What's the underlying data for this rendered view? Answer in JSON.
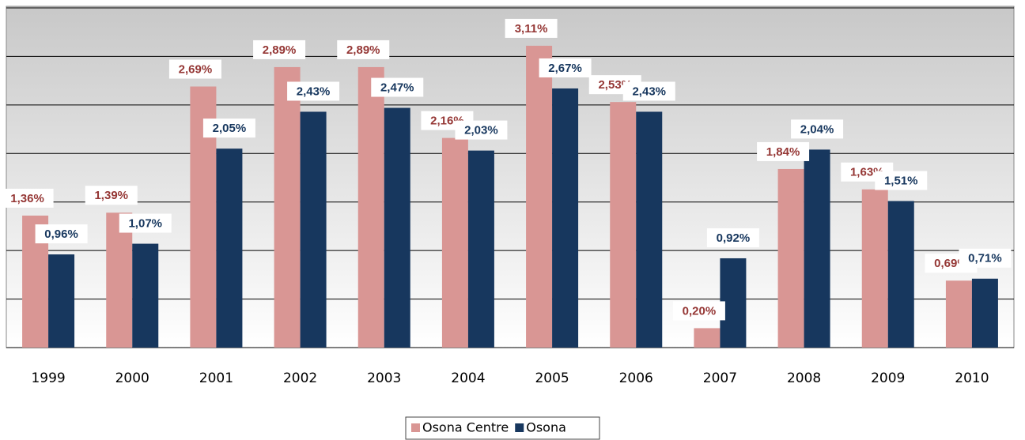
{
  "chart_data": {
    "type": "bar",
    "categories": [
      "1999",
      "2000",
      "2001",
      "2002",
      "2003",
      "2004",
      "2005",
      "2006",
      "2007",
      "2008",
      "2009",
      "2010"
    ],
    "series": [
      {
        "name": "Osona Centre",
        "color": "#d99694",
        "label_color": "#953735",
        "values": [
          1.36,
          1.39,
          2.69,
          2.89,
          2.89,
          2.16,
          3.11,
          2.53,
          0.2,
          1.84,
          1.63,
          0.69
        ],
        "value_labels": [
          "1,36%",
          "1,39%",
          "2,69%",
          "2,89%",
          "2,89%",
          "2,16%",
          "3,11%",
          "2,53%",
          "0,20%",
          "1,84%",
          "1,63%",
          "0,69%"
        ]
      },
      {
        "name": "Osona",
        "color": "#17375e",
        "label_color": "#17375e",
        "values": [
          0.96,
          1.07,
          2.05,
          2.43,
          2.47,
          2.03,
          2.67,
          2.43,
          0.92,
          2.04,
          1.51,
          0.71
        ],
        "value_labels": [
          "0,96%",
          "1,07%",
          "2,05%",
          "2,43%",
          "2,47%",
          "2,03%",
          "2,67%",
          "2,43%",
          "0,92%",
          "2,04%",
          "1,51%",
          "0,71%"
        ]
      }
    ],
    "ylim": [
      0,
      3.5
    ],
    "yticks": [
      0,
      0.5,
      1,
      1.5,
      2,
      2.5,
      3,
      3.5
    ],
    "grid": true,
    "legend": "bottom"
  }
}
